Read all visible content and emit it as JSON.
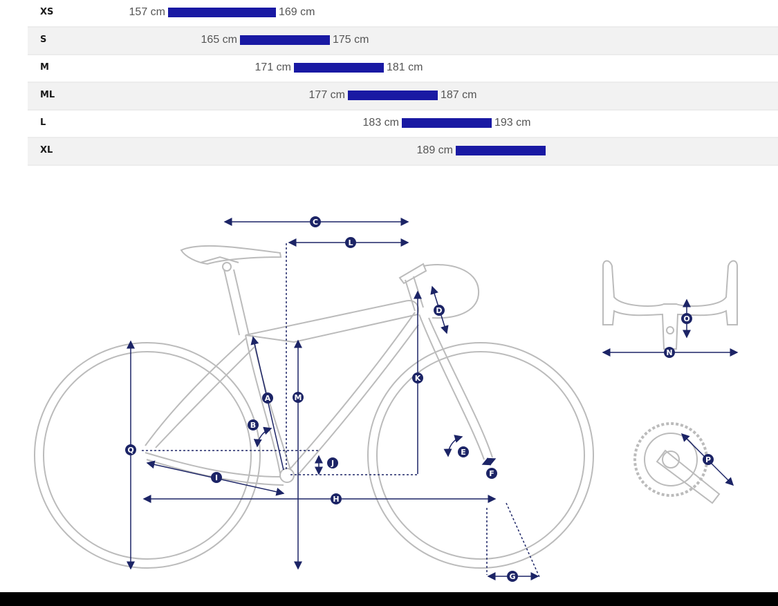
{
  "size_chart": {
    "bar_color": "#1919a3",
    "height_min_cm": 150,
    "height_max_cm": 200,
    "rows": [
      {
        "size": "XS",
        "min": 157,
        "max": 169,
        "min_label": "157 cm",
        "max_label": "169 cm"
      },
      {
        "size": "S",
        "min": 165,
        "max": 175,
        "min_label": "165 cm",
        "max_label": "175 cm"
      },
      {
        "size": "M",
        "min": 171,
        "max": 181,
        "min_label": "171 cm",
        "max_label": "181 cm"
      },
      {
        "size": "ML",
        "min": 177,
        "max": 187,
        "min_label": "177 cm",
        "max_label": "187 cm"
      },
      {
        "size": "L",
        "min": 183,
        "max": 193,
        "min_label": "183 cm",
        "max_label": "193 cm"
      },
      {
        "size": "XL",
        "min": 189,
        "max": 199,
        "min_label": "189 cm",
        "max_label": ""
      }
    ]
  },
  "geometry": {
    "frame_color": "#bbbbbb",
    "marker_color": "#1c2466",
    "markers": [
      "A",
      "B",
      "C",
      "D",
      "E",
      "F",
      "G",
      "H",
      "I",
      "J",
      "K",
      "L",
      "M",
      "N",
      "O",
      "P",
      "Q"
    ]
  }
}
